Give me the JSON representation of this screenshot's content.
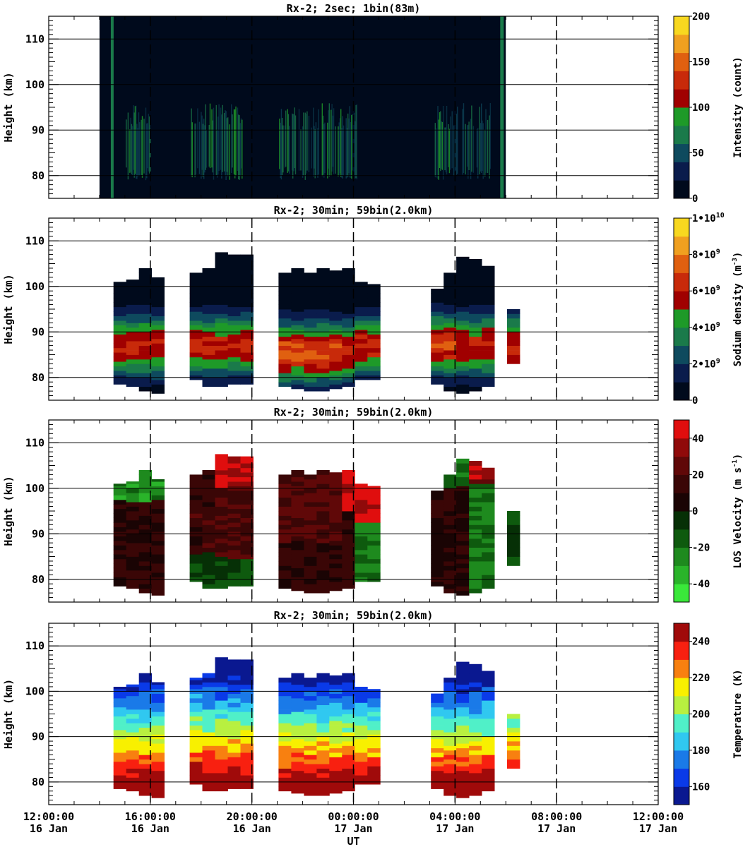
{
  "chart_data": [
    {
      "type": "heatmap",
      "title": "Rx-2;  2sec; 1bin(83m)",
      "ylabel": "Height (km)",
      "ylim": [
        75,
        115
      ],
      "xlim_hours": [
        12,
        36
      ],
      "data_window_hours": [
        14.0,
        30.0
      ],
      "activity_bands_hours": [
        [
          15.0,
          16.0
        ],
        [
          17.6,
          19.6
        ],
        [
          21.0,
          24.2
        ],
        [
          27.2,
          29.4
        ]
      ],
      "yticks": [
        "80",
        "90",
        "100",
        "110"
      ],
      "colorbar": {
        "label": "Intensity (count)",
        "ticks": [
          "0",
          "50",
          "100",
          "150",
          "200"
        ],
        "range": [
          0,
          200
        ]
      }
    },
    {
      "type": "heatmap",
      "title": "Rx-2; 30min; 59bin(2.0km)",
      "ylabel": "Height (km)",
      "ylim": [
        75,
        115
      ],
      "yticks": [
        "80",
        "90",
        "100",
        "110"
      ],
      "colorbar": {
        "label": "Sodium density (m",
        "label_sup": "-3",
        "label_end": ")",
        "range": [
          0,
          10000000000
        ],
        "ticks": [
          {
            "v": 0,
            "m": "0",
            "e": ""
          },
          {
            "v": 2,
            "m": "2•10",
            "e": "9"
          },
          {
            "v": 4,
            "m": "4•10",
            "e": "9"
          },
          {
            "v": 6,
            "m": "6•10",
            "e": "9"
          },
          {
            "v": 8,
            "m": "8•10",
            "e": "9"
          },
          {
            "v": 10,
            "m": "1•10",
            "e": "10"
          }
        ]
      },
      "columns": [
        {
          "t": 14.8,
          "top": 101,
          "bot": 78.5
        },
        {
          "t": 15.3,
          "top": 101.5,
          "bot": 78
        },
        {
          "t": 15.8,
          "top": 104,
          "bot": 77
        },
        {
          "t": 16.3,
          "top": 102,
          "bot": 76.5
        },
        {
          "t": 17.8,
          "top": 103,
          "bot": 79.5
        },
        {
          "t": 18.3,
          "top": 104,
          "bot": 78
        },
        {
          "t": 18.8,
          "top": 107.5,
          "bot": 78
        },
        {
          "t": 19.3,
          "top": 107,
          "bot": 78.5
        },
        {
          "t": 19.8,
          "top": 107,
          "bot": 78.5
        },
        {
          "t": 21.3,
          "top": 103,
          "bot": 78
        },
        {
          "t": 21.8,
          "top": 104,
          "bot": 77.5
        },
        {
          "t": 22.3,
          "top": 103,
          "bot": 77
        },
        {
          "t": 22.8,
          "top": 104,
          "bot": 77
        },
        {
          "t": 23.3,
          "top": 103.5,
          "bot": 77.5
        },
        {
          "t": 23.8,
          "top": 104,
          "bot": 78
        },
        {
          "t": 24.3,
          "top": 101,
          "bot": 79.5
        },
        {
          "t": 24.8,
          "top": 100.5,
          "bot": 79.5
        },
        {
          "t": 27.3,
          "top": 99.5,
          "bot": 78.5
        },
        {
          "t": 27.8,
          "top": 103,
          "bot": 77
        },
        {
          "t": 28.3,
          "top": 106.5,
          "bot": 76.5
        },
        {
          "t": 28.8,
          "top": 106,
          "bot": 77
        },
        {
          "t": 29.3,
          "top": 104.5,
          "bot": 78
        },
        {
          "t": 30.3,
          "top": 95,
          "bot": 83
        }
      ]
    },
    {
      "type": "heatmap",
      "title": "Rx-2; 30min; 59bin(2.0km)",
      "ylabel": "Height (km)",
      "ylim": [
        75,
        115
      ],
      "yticks": [
        "80",
        "90",
        "100",
        "110"
      ],
      "colorbar": {
        "label": "LOS Velocity (m s",
        "label_sup": "-1",
        "label_end": ")",
        "range": [
          -50,
          50
        ],
        "ticks": [
          "-40",
          "-20",
          "0",
          "20",
          "40"
        ]
      }
    },
    {
      "type": "heatmap",
      "title": "Rx-2; 30min; 59bin(2.0km)",
      "ylabel": "Height (km)",
      "ylim": [
        75,
        115
      ],
      "yticks": [
        "80",
        "90",
        "100",
        "110"
      ],
      "colorbar": {
        "label": "Temperature (K)",
        "range": [
          150,
          250
        ],
        "ticks": [
          "160",
          "180",
          "200",
          "220",
          "240"
        ]
      },
      "xlabel": "UT",
      "xticks": [
        {
          "time": "12:00:00",
          "date": "16 Jan"
        },
        {
          "time": "16:00:00",
          "date": "16 Jan"
        },
        {
          "time": "20:00:00",
          "date": "16 Jan"
        },
        {
          "time": "00:00:00",
          "date": "17 Jan"
        },
        {
          "time": "04:00:00",
          "date": "17 Jan"
        },
        {
          "time": "08:00:00",
          "date": "17 Jan"
        },
        {
          "time": "12:00:00",
          "date": "17 Jan"
        }
      ]
    }
  ],
  "colors": {
    "intensity": [
      "#000a1c",
      "#0a1c4c",
      "#0e4a5e",
      "#1a7a4a",
      "#1e9a28",
      "#a00000",
      "#c82a0a",
      "#e06010",
      "#f0a020",
      "#f8d820"
    ],
    "density": [
      "#000a1c",
      "#0a1c4c",
      "#0e4a5e",
      "#1a7a4a",
      "#1e9a28",
      "#a00000",
      "#c82a0a",
      "#e06010",
      "#f0a020",
      "#f8d820"
    ],
    "velocity": [
      "#3ae83a",
      "#2ab42a",
      "#1e8a1e",
      "#0e5a0e",
      "#063006",
      "#1a0404",
      "#3a0606",
      "#600808",
      "#900a0a",
      "#e00e0e"
    ],
    "temperature": [
      "#0a1890",
      "#0a3ae8",
      "#1a7ae8",
      "#30c8f0",
      "#50f0c8",
      "#b8f040",
      "#f8f000",
      "#f88010",
      "#f82010",
      "#a00a0a"
    ]
  }
}
